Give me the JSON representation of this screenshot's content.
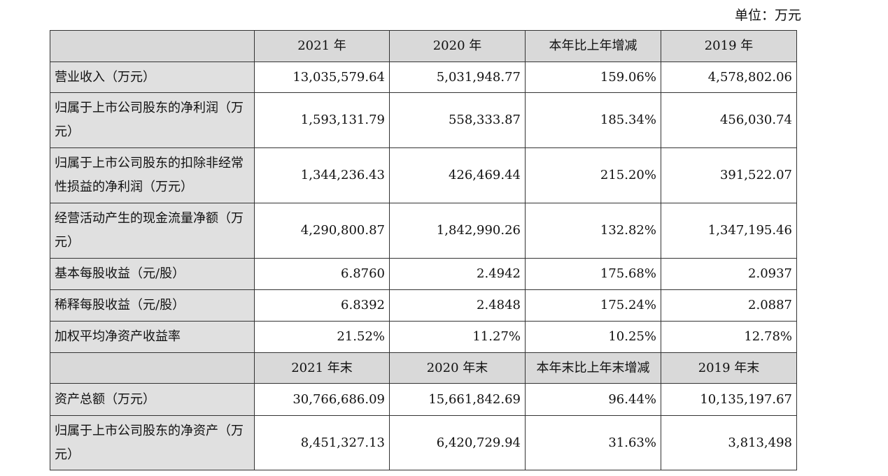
{
  "unit_label": "单位：万元",
  "header1": [
    "2021 年",
    "2020 年",
    "本年比上年增减",
    "2019 年"
  ],
  "header2": [
    "2021 年末",
    "2020 年末",
    "本年末比上年末增减",
    "2019 年末"
  ],
  "rows": [
    {
      "label": "营业收入（万元）",
      "values": [
        "13,035,579.64",
        "5,031,948.77",
        "159.06%",
        "4,578,802.06"
      ]
    },
    {
      "label": "归属于上市公司股东的净利润（万元）",
      "values": [
        "1,593,131.79",
        "558,333.87",
        "185.34%",
        "456,030.74"
      ]
    },
    {
      "label": "归属于上市公司股东的扣除非经常性损益的净利润（万元）",
      "values": [
        "1,344,236.43",
        "426,469.44",
        "215.20%",
        "391,522.07"
      ]
    },
    {
      "label": "经营活动产生的现金流量净额（万元）",
      "values": [
        "4,290,800.87",
        "1,842,990.26",
        "132.82%",
        "1,347,195.46"
      ]
    },
    {
      "label": "基本每股收益（元/股）",
      "values": [
        "6.8760",
        "2.4942",
        "175.68%",
        "2.0937"
      ]
    },
    {
      "label": "稀释每股收益（元/股）",
      "values": [
        "6.8392",
        "2.4848",
        "175.24%",
        "2.0887"
      ]
    },
    {
      "label": "加权平均净资产收益率",
      "values": [
        "21.52%",
        "11.27%",
        "10.25%",
        "12.78%"
      ]
    }
  ],
  "rows2": [
    {
      "label": "资产总额（万元）",
      "values": [
        "30,766,686.09",
        "15,661,842.69",
        "96.44%",
        "10,135,197.67"
      ]
    },
    {
      "label": "归属于上市公司股东的净资产（万元）",
      "values": [
        "8,451,327.13",
        "6,420,729.94",
        "31.63%",
        "3,813,498"
      ]
    }
  ]
}
